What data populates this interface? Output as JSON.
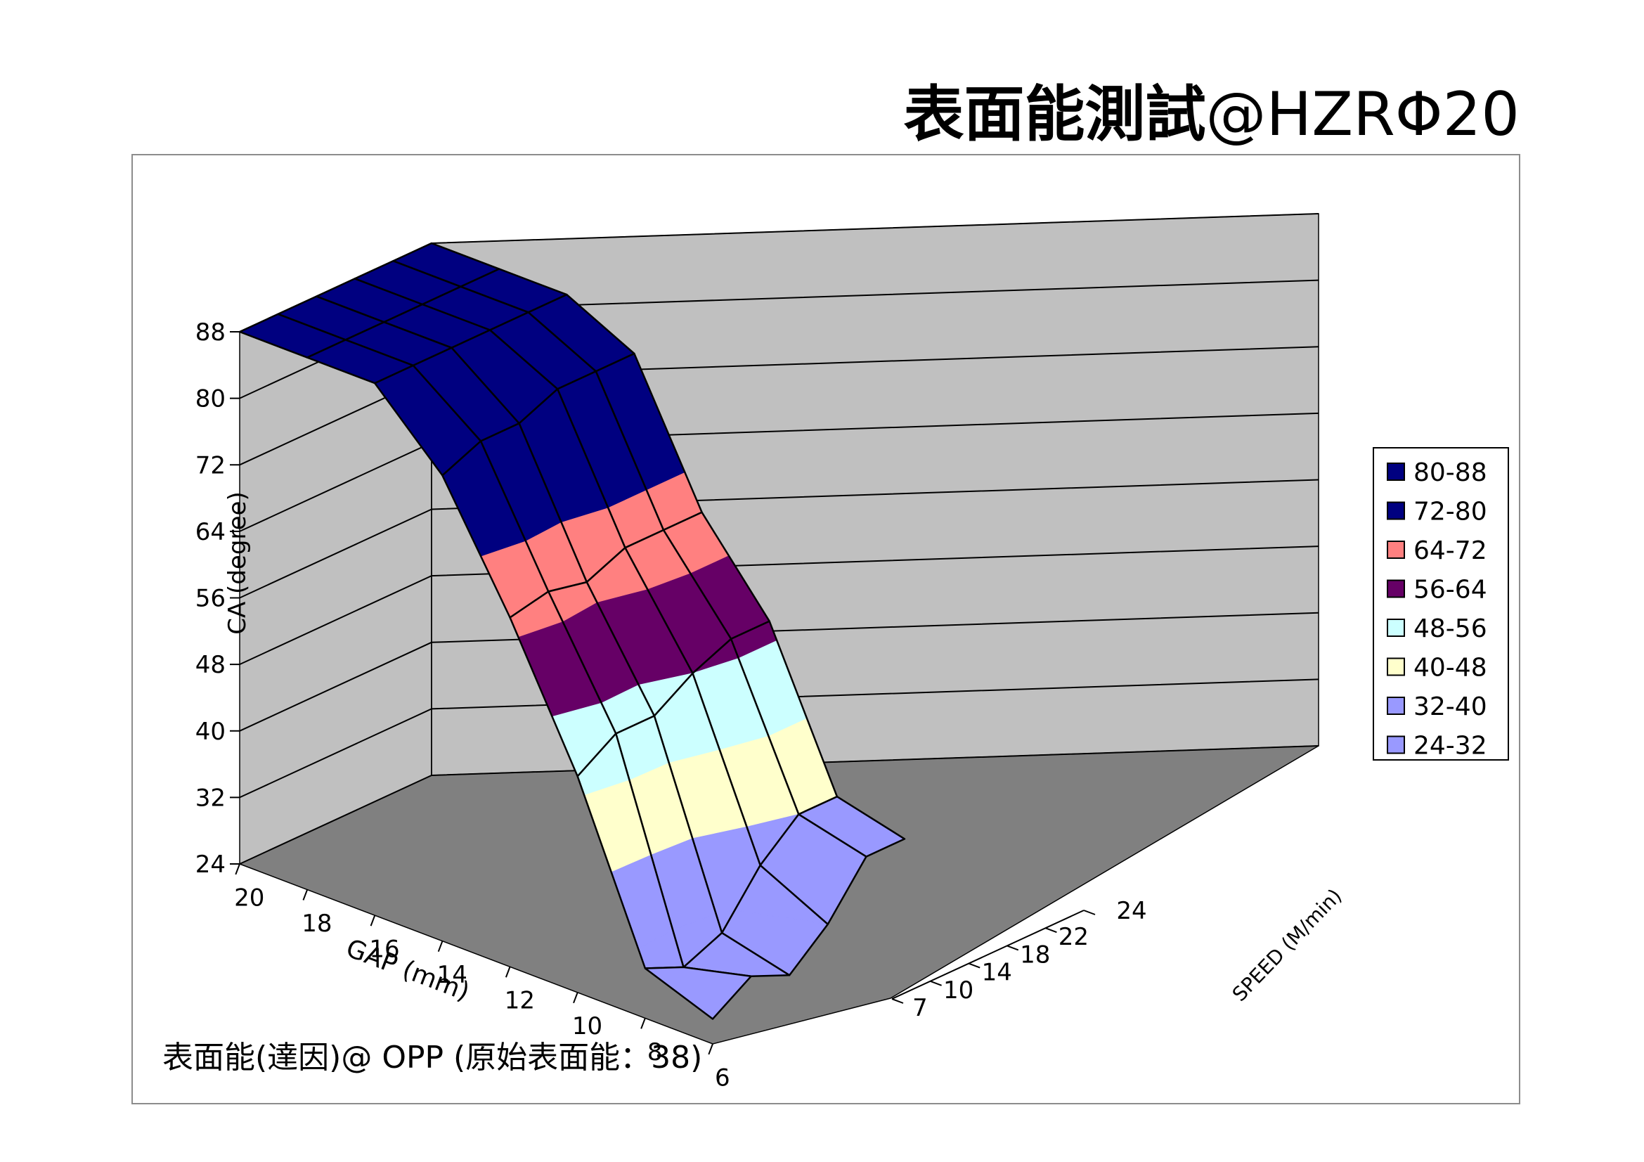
{
  "title": {
    "main": "表面能測試",
    "sub": "@HZRΦ20"
  },
  "chart_data": {
    "type": "surface",
    "x": {
      "label": "GAP (mm)",
      "ticks": [
        "20",
        "18",
        "16",
        "14",
        "12",
        "10",
        "8",
        "6"
      ]
    },
    "y": {
      "label": "SPEED (M/min)",
      "ticks": [
        "7",
        "10",
        "14",
        "18",
        "22",
        "24"
      ]
    },
    "z": {
      "label": "CA (degree)",
      "ticks": [
        "24",
        "32",
        "40",
        "48",
        "56",
        "64",
        "72",
        "80",
        "88"
      ],
      "range": [
        24,
        88
      ]
    },
    "values": [
      [
        88,
        88,
        88,
        88,
        88,
        88
      ],
      [
        88,
        88,
        88,
        88,
        88,
        88
      ],
      [
        88,
        88,
        88,
        88,
        88,
        88
      ],
      [
        80,
        82,
        82,
        84,
        84,
        84
      ],
      [
        66,
        67,
        66,
        68,
        68,
        68
      ],
      [
        50,
        53,
        53,
        56,
        58,
        58
      ],
      [
        30,
        28,
        30,
        36,
        40,
        40
      ],
      [
        27,
        30,
        28,
        32,
        38,
        38
      ]
    ],
    "legend": {
      "position": "right",
      "entries": [
        {
          "label": "80-88",
          "color": "#000080"
        },
        {
          "label": "72-80",
          "color": "#000080"
        },
        {
          "label": "64-72",
          "color": "#ff8080"
        },
        {
          "label": "56-64",
          "color": "#660066"
        },
        {
          "label": "48-56",
          "color": "#ccffff"
        },
        {
          "label": "40-48",
          "color": "#ffffcc"
        },
        {
          "label": "32-40",
          "color": "#9999ff"
        },
        {
          "label": "24-32",
          "color": "#9999ff"
        }
      ]
    },
    "wall_color": "#c0c0c0",
    "floor_color": "#808080",
    "gridlines": true,
    "note": "表面能(達因)@ OPP (原始表面能：38)"
  }
}
